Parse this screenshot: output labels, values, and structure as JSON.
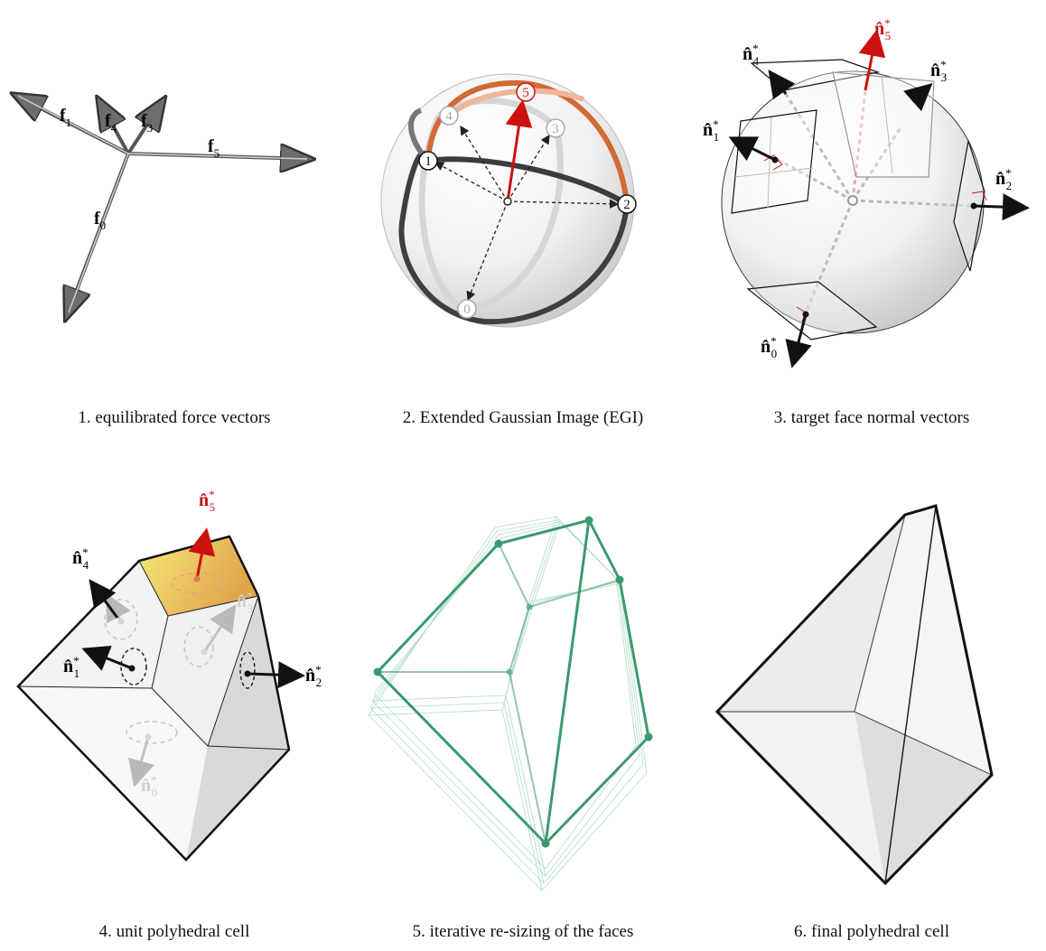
{
  "captions": {
    "p1": "1. equilibrated force vectors",
    "p2": "2. Extended Gaussian Image (EGI)",
    "p3": "3. target face normal vectors",
    "p4": "4. unit polyhedral cell",
    "p5": "5. iterative re-sizing of the faces",
    "p6": "6. final polyhedral cell"
  },
  "force_labels": {
    "base": "f",
    "subs": [
      "0",
      "1",
      "3",
      "4",
      "5"
    ]
  },
  "egi_nodes": [
    "0",
    "1",
    "2",
    "3",
    "4",
    "5"
  ],
  "normal_labels": {
    "base": "n̂",
    "star": "*",
    "subs": [
      "0",
      "1",
      "2",
      "3",
      "4",
      "5"
    ]
  },
  "colors": {
    "highlight": "#cc1111",
    "mesh": "#3a9a6e",
    "face_yellow": "#f3dc5c",
    "gray_line": "#888888"
  }
}
